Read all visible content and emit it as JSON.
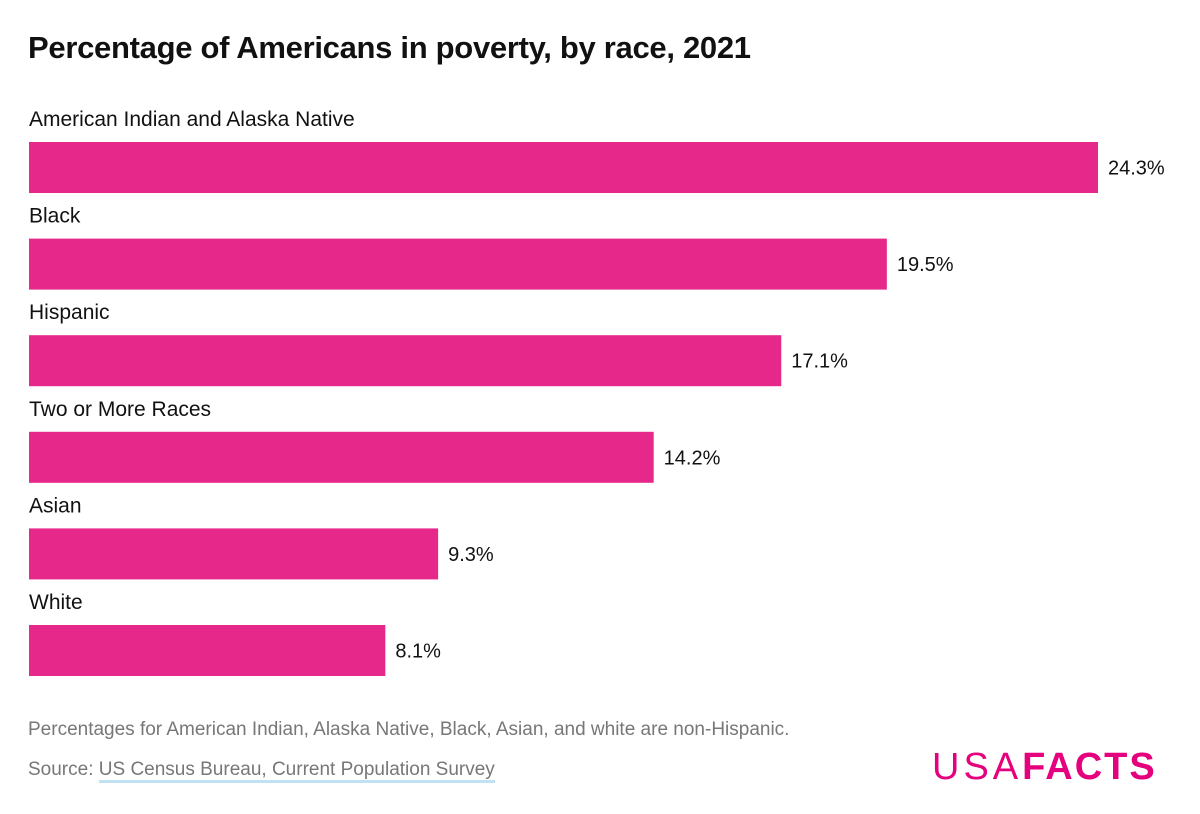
{
  "chart_data": {
    "type": "bar",
    "orientation": "horizontal",
    "title": "Percentage of Americans in poverty, by race, 2021",
    "categories": [
      "American Indian and Alaska Native",
      "Black",
      "Hispanic",
      "Two or More Races",
      "Asian",
      "White"
    ],
    "values": [
      24.3,
      19.5,
      17.1,
      14.2,
      9.3,
      8.1
    ],
    "value_labels": [
      "24.3%",
      "19.5%",
      "17.1%",
      "14.2%",
      "9.3%",
      "8.1%"
    ],
    "unit": "%",
    "xlim": [
      0,
      24.3
    ],
    "grid": false,
    "bar_color": "#e6288a"
  },
  "footer": {
    "note": "Percentages for American Indian, Alaska Native, Black, Asian, and white are non-Hispanic.",
    "source_prefix": "Source: ",
    "source_link": "US Census Bureau, Current Population Survey"
  },
  "logo": {
    "text_thin": "USA",
    "text_bold": "FACTS",
    "color": "#e5007d"
  }
}
